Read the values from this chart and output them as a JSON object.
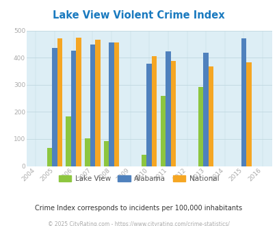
{
  "title": "Lake View Violent Crime Index",
  "title_color": "#1a7abf",
  "years": [
    2005,
    2006,
    2007,
    2008,
    2010,
    2011,
    2013,
    2015
  ],
  "lake_view": [
    67,
    184,
    102,
    93,
    42,
    260,
    293,
    0
  ],
  "alabama": [
    435,
    426,
    449,
    455,
    377,
    422,
    418,
    472
  ],
  "national": [
    470,
    473,
    467,
    455,
    405,
    387,
    367,
    383
  ],
  "lake_view_color": "#8dc63f",
  "alabama_color": "#4f81bd",
  "national_color": "#f5a623",
  "plot_bg": "#ddeef5",
  "ylim": [
    0,
    500
  ],
  "yticks": [
    0,
    100,
    200,
    300,
    400,
    500
  ],
  "xlim_min": 2003.5,
  "xlim_max": 2016.5,
  "xticks": [
    2004,
    2005,
    2006,
    2007,
    2008,
    2009,
    2010,
    2011,
    2012,
    2013,
    2014,
    2015,
    2016
  ],
  "legend_labels": [
    "Lake View",
    "Alabama",
    "National"
  ],
  "footnote": "Crime Index corresponds to incidents per 100,000 inhabitants",
  "copyright": "© 2025 CityRating.com - https://www.cityrating.com/crime-statistics/",
  "bar_width": 0.27,
  "grid_color": "#c0d8e0",
  "tick_color": "#aaaaaa",
  "tick_fontsize": 6.5,
  "title_fontsize": 10.5,
  "footnote_fontsize": 7.0,
  "copyright_fontsize": 5.5
}
